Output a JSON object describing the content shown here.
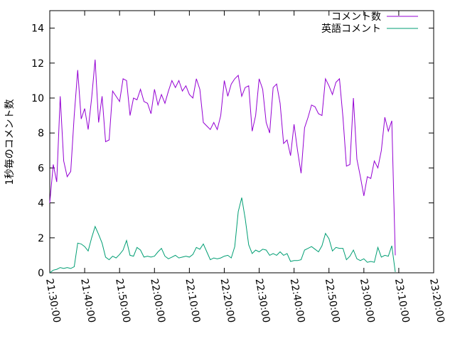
{
  "chart_data": {
    "type": "line",
    "ylabel": "1秒毎のコメント数",
    "xlabel": "",
    "ylim": [
      0,
      15
    ],
    "xlim": [
      "21:30:00",
      "23:20:00"
    ],
    "y_ticks": [
      "0",
      "2",
      "4",
      "6",
      "8",
      "10",
      "12",
      "14"
    ],
    "x_ticks": [
      "21:30:00",
      "21:40:00",
      "21:50:00",
      "22:00:00",
      "22:10:00",
      "22:20:00",
      "22:30:00",
      "22:40:00",
      "22:50:00",
      "23:00:00",
      "23:10:00",
      "23:20:00"
    ],
    "grid": false,
    "legend_position": "top-right",
    "series": [
      {
        "name": "コメント数",
        "color": "#9400d3",
        "points": [
          [
            "21:30:00",
            4.0
          ],
          [
            "21:31:00",
            6.2
          ],
          [
            "21:32:00",
            5.2
          ],
          [
            "21:33:00",
            10.1
          ],
          [
            "21:34:00",
            6.4
          ],
          [
            "21:35:00",
            5.5
          ],
          [
            "21:36:00",
            5.8
          ],
          [
            "21:37:00",
            9.0
          ],
          [
            "21:38:00",
            11.6
          ],
          [
            "21:39:00",
            8.8
          ],
          [
            "21:40:00",
            9.4
          ],
          [
            "21:41:00",
            8.2
          ],
          [
            "21:42:00",
            10.0
          ],
          [
            "21:43:00",
            12.2
          ],
          [
            "21:44:00",
            8.6
          ],
          [
            "21:45:00",
            10.1
          ],
          [
            "21:46:00",
            7.5
          ],
          [
            "21:47:00",
            7.6
          ],
          [
            "21:48:00",
            10.4
          ],
          [
            "21:49:00",
            10.1
          ],
          [
            "21:50:00",
            9.8
          ],
          [
            "21:51:00",
            11.1
          ],
          [
            "21:52:00",
            11.0
          ],
          [
            "21:53:00",
            9.0
          ],
          [
            "21:54:00",
            10.0
          ],
          [
            "21:55:00",
            9.9
          ],
          [
            "21:56:00",
            10.5
          ],
          [
            "21:57:00",
            9.8
          ],
          [
            "21:58:00",
            9.7
          ],
          [
            "21:59:00",
            9.1
          ],
          [
            "22:00:00",
            10.5
          ],
          [
            "22:01:00",
            9.6
          ],
          [
            "22:02:00",
            10.2
          ],
          [
            "22:03:00",
            9.7
          ],
          [
            "22:04:00",
            10.4
          ],
          [
            "22:05:00",
            11.0
          ],
          [
            "22:06:00",
            10.6
          ],
          [
            "22:07:00",
            11.0
          ],
          [
            "22:08:00",
            10.4
          ],
          [
            "22:09:00",
            10.7
          ],
          [
            "22:10:00",
            10.2
          ],
          [
            "22:11:00",
            10.0
          ],
          [
            "22:12:00",
            11.1
          ],
          [
            "22:13:00",
            10.5
          ],
          [
            "22:14:00",
            8.6
          ],
          [
            "22:15:00",
            8.4
          ],
          [
            "22:16:00",
            8.2
          ],
          [
            "22:17:00",
            8.6
          ],
          [
            "22:18:00",
            8.2
          ],
          [
            "22:19:00",
            9.0
          ],
          [
            "22:20:00",
            11.0
          ],
          [
            "22:21:00",
            10.1
          ],
          [
            "22:22:00",
            10.8
          ],
          [
            "22:23:00",
            11.1
          ],
          [
            "22:24:00",
            11.3
          ],
          [
            "22:25:00",
            10.1
          ],
          [
            "22:26:00",
            10.6
          ],
          [
            "22:27:00",
            10.7
          ],
          [
            "22:28:00",
            8.1
          ],
          [
            "22:29:00",
            9.0
          ],
          [
            "22:30:00",
            11.1
          ],
          [
            "22:31:00",
            10.5
          ],
          [
            "22:32:00",
            8.6
          ],
          [
            "22:33:00",
            8.0
          ],
          [
            "22:34:00",
            10.6
          ],
          [
            "22:35:00",
            10.8
          ],
          [
            "22:36:00",
            9.7
          ],
          [
            "22:37:00",
            7.4
          ],
          [
            "22:38:00",
            7.6
          ],
          [
            "22:39:00",
            6.7
          ],
          [
            "22:40:00",
            8.5
          ],
          [
            "22:41:00",
            7.0
          ],
          [
            "22:42:00",
            5.7
          ],
          [
            "22:43:00",
            8.3
          ],
          [
            "22:44:00",
            8.9
          ],
          [
            "22:45:00",
            9.6
          ],
          [
            "22:46:00",
            9.5
          ],
          [
            "22:47:00",
            9.1
          ],
          [
            "22:48:00",
            9.0
          ],
          [
            "22:49:00",
            11.1
          ],
          [
            "22:50:00",
            10.7
          ],
          [
            "22:51:00",
            10.2
          ],
          [
            "22:52:00",
            10.9
          ],
          [
            "22:53:00",
            11.1
          ],
          [
            "22:54:00",
            8.9
          ],
          [
            "22:55:00",
            6.1
          ],
          [
            "22:56:00",
            6.2
          ],
          [
            "22:57:00",
            10.0
          ],
          [
            "22:58:00",
            6.5
          ],
          [
            "22:59:00",
            5.5
          ],
          [
            "23:00:00",
            4.4
          ],
          [
            "23:01:00",
            5.5
          ],
          [
            "23:02:00",
            5.4
          ],
          [
            "23:03:00",
            6.4
          ],
          [
            "23:04:00",
            6.0
          ],
          [
            "23:05:00",
            7.0
          ],
          [
            "23:06:00",
            8.9
          ],
          [
            "23:07:00",
            8.1
          ],
          [
            "23:08:00",
            8.7
          ],
          [
            "23:09:00",
            1.0
          ]
        ]
      },
      {
        "name": "英語コメント",
        "color": "#009e73",
        "points": [
          [
            "21:30:00",
            0.0
          ],
          [
            "21:31:00",
            0.15
          ],
          [
            "21:32:00",
            0.2
          ],
          [
            "21:33:00",
            0.3
          ],
          [
            "21:34:00",
            0.25
          ],
          [
            "21:35:00",
            0.3
          ],
          [
            "21:36:00",
            0.25
          ],
          [
            "21:37:00",
            0.35
          ],
          [
            "21:38:00",
            1.7
          ],
          [
            "21:39:00",
            1.65
          ],
          [
            "21:40:00",
            1.5
          ],
          [
            "21:41:00",
            1.25
          ],
          [
            "21:42:00",
            2.0
          ],
          [
            "21:43:00",
            2.65
          ],
          [
            "21:44:00",
            2.2
          ],
          [
            "21:45:00",
            1.7
          ],
          [
            "21:46:00",
            0.9
          ],
          [
            "21:47:00",
            0.75
          ],
          [
            "21:48:00",
            0.95
          ],
          [
            "21:49:00",
            0.85
          ],
          [
            "21:50:00",
            1.05
          ],
          [
            "21:51:00",
            1.3
          ],
          [
            "21:52:00",
            1.85
          ],
          [
            "21:53:00",
            1.0
          ],
          [
            "21:54:00",
            0.95
          ],
          [
            "21:55:00",
            1.45
          ],
          [
            "21:56:00",
            1.3
          ],
          [
            "21:57:00",
            0.9
          ],
          [
            "21:58:00",
            0.95
          ],
          [
            "21:59:00",
            0.9
          ],
          [
            "22:00:00",
            0.95
          ],
          [
            "22:01:00",
            1.2
          ],
          [
            "22:02:00",
            1.4
          ],
          [
            "22:03:00",
            0.95
          ],
          [
            "22:04:00",
            0.8
          ],
          [
            "22:05:00",
            0.9
          ],
          [
            "22:06:00",
            1.0
          ],
          [
            "22:07:00",
            0.85
          ],
          [
            "22:08:00",
            0.9
          ],
          [
            "22:09:00",
            0.95
          ],
          [
            "22:10:00",
            0.9
          ],
          [
            "22:11:00",
            1.05
          ],
          [
            "22:12:00",
            1.45
          ],
          [
            "22:13:00",
            1.35
          ],
          [
            "22:14:00",
            1.65
          ],
          [
            "22:15:00",
            1.2
          ],
          [
            "22:16:00",
            0.75
          ],
          [
            "22:17:00",
            0.85
          ],
          [
            "22:18:00",
            0.8
          ],
          [
            "22:19:00",
            0.85
          ],
          [
            "22:20:00",
            0.95
          ],
          [
            "22:21:00",
            1.0
          ],
          [
            "22:22:00",
            0.85
          ],
          [
            "22:23:00",
            1.5
          ],
          [
            "22:24:00",
            3.5
          ],
          [
            "22:25:00",
            4.3
          ],
          [
            "22:26:00",
            3.1
          ],
          [
            "22:27:00",
            1.6
          ],
          [
            "22:28:00",
            1.1
          ],
          [
            "22:29:00",
            1.3
          ],
          [
            "22:30:00",
            1.2
          ],
          [
            "22:31:00",
            1.35
          ],
          [
            "22:32:00",
            1.3
          ],
          [
            "22:33:00",
            1.0
          ],
          [
            "22:34:00",
            1.1
          ],
          [
            "22:35:00",
            1.0
          ],
          [
            "22:36:00",
            1.2
          ],
          [
            "22:37:00",
            1.0
          ],
          [
            "22:38:00",
            1.1
          ],
          [
            "22:39:00",
            0.65
          ],
          [
            "22:40:00",
            0.7
          ],
          [
            "22:41:00",
            0.7
          ],
          [
            "22:42:00",
            0.75
          ],
          [
            "22:43:00",
            1.3
          ],
          [
            "22:44:00",
            1.4
          ],
          [
            "22:45:00",
            1.5
          ],
          [
            "22:46:00",
            1.35
          ],
          [
            "22:47:00",
            1.2
          ],
          [
            "22:48:00",
            1.55
          ],
          [
            "22:49:00",
            2.25
          ],
          [
            "22:50:00",
            1.95
          ],
          [
            "22:51:00",
            1.25
          ],
          [
            "22:52:00",
            1.45
          ],
          [
            "22:53:00",
            1.4
          ],
          [
            "22:54:00",
            1.4
          ],
          [
            "22:55:00",
            0.75
          ],
          [
            "22:56:00",
            0.95
          ],
          [
            "22:57:00",
            1.3
          ],
          [
            "22:58:00",
            0.8
          ],
          [
            "22:59:00",
            0.7
          ],
          [
            "23:00:00",
            0.8
          ],
          [
            "23:01:00",
            0.6
          ],
          [
            "23:02:00",
            0.65
          ],
          [
            "23:03:00",
            0.6
          ],
          [
            "23:04:00",
            1.45
          ],
          [
            "23:05:00",
            0.9
          ],
          [
            "23:06:00",
            1.0
          ],
          [
            "23:07:00",
            0.95
          ],
          [
            "23:08:00",
            1.55
          ],
          [
            "23:09:00",
            0.05
          ]
        ]
      }
    ]
  }
}
